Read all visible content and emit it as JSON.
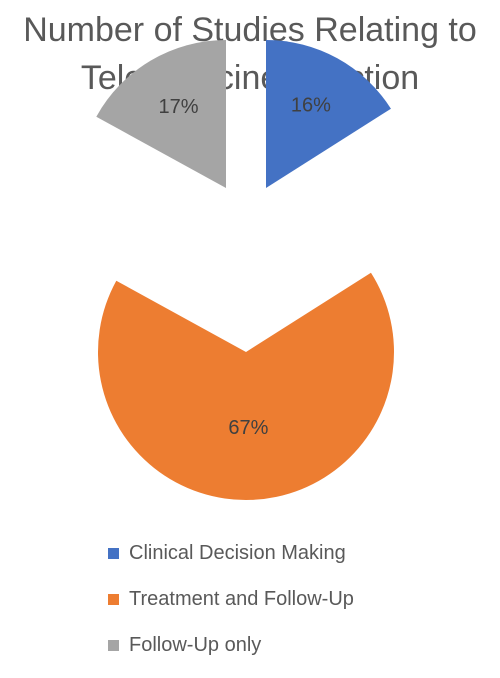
{
  "chart_data": {
    "type": "pie",
    "title": [
      "Number of Studies Relating to",
      "Telemedicine Function"
    ],
    "categories": [
      "Clinical Decision Making",
      "Treatment and Follow-Up",
      "Follow-Up only"
    ],
    "values": [
      16,
      67,
      17
    ],
    "data_labels": [
      "16%",
      "67%",
      "17%"
    ],
    "colors": [
      "#4472C4",
      "#ED7D31",
      "#A5A5A5"
    ],
    "exploded": true,
    "legend_position": "bottom"
  }
}
